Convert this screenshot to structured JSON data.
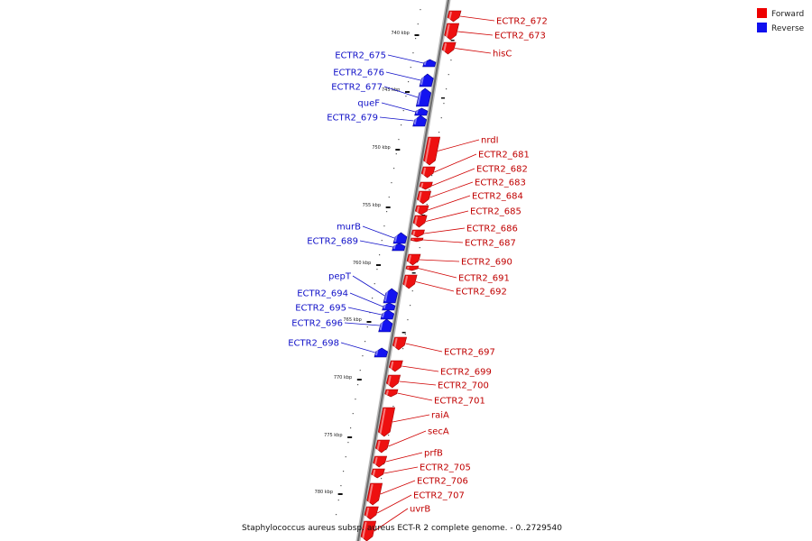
{
  "legend": [
    {
      "label": "Forward",
      "color": "#ee0000"
    },
    {
      "label": "Reverse",
      "color": "#1010ee"
    }
  ],
  "caption": "Staphylococcus aureus subsp. aureus ECT-R 2 complete genome. - 0..2729540",
  "tick_labels": [
    "740 kbp",
    "745 kbp",
    "750 kbp",
    "755 kbp",
    "760 kbp",
    "765 kbp",
    "770 kbp",
    "775 kbp",
    "780 kbp"
  ],
  "forward_genes": [
    {
      "label": "ECTR2_672"
    },
    {
      "label": "ECTR2_673"
    },
    {
      "label": "hisC"
    },
    {
      "label": "nrdI"
    },
    {
      "label": "ECTR2_681"
    },
    {
      "label": "ECTR2_682"
    },
    {
      "label": "ECTR2_683"
    },
    {
      "label": "ECTR2_684"
    },
    {
      "label": "ECTR2_685"
    },
    {
      "label": "ECTR2_686"
    },
    {
      "label": "ECTR2_687"
    },
    {
      "label": "ECTR2_690"
    },
    {
      "label": "ECTR2_691"
    },
    {
      "label": "ECTR2_692"
    },
    {
      "label": "ECTR2_697"
    },
    {
      "label": "ECTR2_699"
    },
    {
      "label": "ECTR2_700"
    },
    {
      "label": "ECTR2_701"
    },
    {
      "label": "raiA"
    },
    {
      "label": "secA"
    },
    {
      "label": "prfB"
    },
    {
      "label": "ECTR2_705"
    },
    {
      "label": "ECTR2_706"
    },
    {
      "label": "ECTR2_707"
    },
    {
      "label": "uvrB"
    }
  ],
  "reverse_genes": [
    {
      "label": "ECTR2_675"
    },
    {
      "label": "ECTR2_676"
    },
    {
      "label": "ECTR2_677"
    },
    {
      "label": "queF"
    },
    {
      "label": "ECTR2_679"
    },
    {
      "label": "murB"
    },
    {
      "label": "ECTR2_689"
    },
    {
      "label": "pepT"
    },
    {
      "label": "ECTR2_694"
    },
    {
      "label": "ECTR2_695"
    },
    {
      "label": "ECTR2_696"
    },
    {
      "label": "ECTR2_698"
    }
  ]
}
